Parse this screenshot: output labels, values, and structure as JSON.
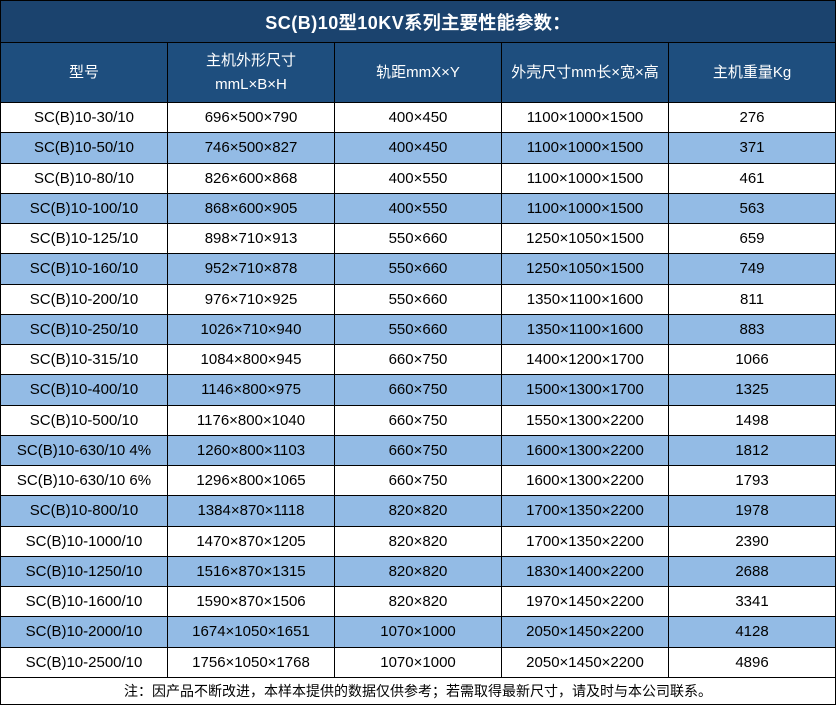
{
  "title": "SC(B)10型10KV系列主要性能参数：",
  "columns": [
    {
      "key": "model",
      "label": "型号"
    },
    {
      "key": "dims",
      "label": "主机外形尺寸",
      "sublabel": "mmL×B×H"
    },
    {
      "key": "rail",
      "label": "轨距mmX×Y"
    },
    {
      "key": "shell",
      "label": "外壳尺寸mm长×宽×高"
    },
    {
      "key": "weight",
      "label": "主机重量Kg"
    }
  ],
  "rows": [
    {
      "model": "SC(B)10-30/10",
      "dims": "696×500×790",
      "rail": "400×450",
      "shell": "1100×1000×1500",
      "weight": "276"
    },
    {
      "model": "SC(B)10-50/10",
      "dims": "746×500×827",
      "rail": "400×450",
      "shell": "1100×1000×1500",
      "weight": "371"
    },
    {
      "model": "SC(B)10-80/10",
      "dims": "826×600×868",
      "rail": "400×550",
      "shell": "1100×1000×1500",
      "weight": "461"
    },
    {
      "model": "SC(B)10-100/10",
      "dims": "868×600×905",
      "rail": "400×550",
      "shell": "1100×1000×1500",
      "weight": "563"
    },
    {
      "model": "SC(B)10-125/10",
      "dims": "898×710×913",
      "rail": "550×660",
      "shell": "1250×1050×1500",
      "weight": "659"
    },
    {
      "model": "SC(B)10-160/10",
      "dims": "952×710×878",
      "rail": "550×660",
      "shell": "1250×1050×1500",
      "weight": "749"
    },
    {
      "model": "SC(B)10-200/10",
      "dims": "976×710×925",
      "rail": "550×660",
      "shell": "1350×1100×1600",
      "weight": "811"
    },
    {
      "model": "SC(B)10-250/10",
      "dims": "1026×710×940",
      "rail": "550×660",
      "shell": "1350×1100×1600",
      "weight": "883"
    },
    {
      "model": "SC(B)10-315/10",
      "dims": "1084×800×945",
      "rail": "660×750",
      "shell": "1400×1200×1700",
      "weight": "1066"
    },
    {
      "model": "SC(B)10-400/10",
      "dims": "1146×800×975",
      "rail": "660×750",
      "shell": "1500×1300×1700",
      "weight": "1325"
    },
    {
      "model": "SC(B)10-500/10",
      "dims": "1176×800×1040",
      "rail": "660×750",
      "shell": "1550×1300×2200",
      "weight": "1498"
    },
    {
      "model": "SC(B)10-630/10 4%",
      "dims": "1260×800×1103",
      "rail": "660×750",
      "shell": "1600×1300×2200",
      "weight": "1812"
    },
    {
      "model": "SC(B)10-630/10 6%",
      "dims": "1296×800×1065",
      "rail": "660×750",
      "shell": "1600×1300×2200",
      "weight": "1793"
    },
    {
      "model": "SC(B)10-800/10",
      "dims": "1384×870×1118",
      "rail": "820×820",
      "shell": "1700×1350×2200",
      "weight": "1978"
    },
    {
      "model": "SC(B)10-1000/10",
      "dims": "1470×870×1205",
      "rail": "820×820",
      "shell": "1700×1350×2200",
      "weight": "2390"
    },
    {
      "model": "SC(B)10-1250/10",
      "dims": "1516×870×1315",
      "rail": "820×820",
      "shell": "1830×1400×2200",
      "weight": "2688"
    },
    {
      "model": "SC(B)10-1600/10",
      "dims": "1590×870×1506",
      "rail": "820×820",
      "shell": "1970×1450×2200",
      "weight": "3341"
    },
    {
      "model": "SC(B)10-2000/10",
      "dims": "1674×1050×1651",
      "rail": "1070×1000",
      "shell": "2050×1450×2200",
      "weight": "4128"
    },
    {
      "model": "SC(B)10-2500/10",
      "dims": "1756×1050×1768",
      "rail": "1070×1000",
      "shell": "2050×1450×2200",
      "weight": "4896"
    }
  ],
  "footer_note": "注：因产品不断改进，本样本提供的数据仅供参考；若需取得最新尺寸，请及时与本公司联系。",
  "colors": {
    "title_bg": "#1B436E",
    "header_bg": "#1E4E7E",
    "stripe_bg": "#93BBE5",
    "border": "#000000",
    "header_text": "#FFFFFF",
    "body_text": "#000000"
  }
}
